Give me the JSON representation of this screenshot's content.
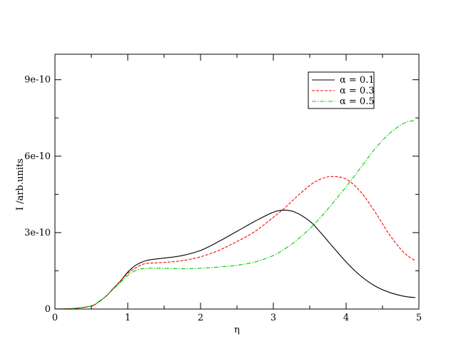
{
  "chart_data": {
    "type": "line",
    "title": "",
    "xlabel": "η",
    "ylabel": "I /arb.units",
    "xlim": [
      0,
      5
    ],
    "ylim": [
      0,
      1e-09
    ],
    "grid": false,
    "legend_position": "top-right",
    "x_ticks": [
      {
        "value": 0,
        "label": "0"
      },
      {
        "value": 1,
        "label": "1"
      },
      {
        "value": 2,
        "label": "2"
      },
      {
        "value": 3,
        "label": "3"
      },
      {
        "value": 4,
        "label": "4"
      },
      {
        "value": 5,
        "label": "5"
      }
    ],
    "y_ticks": [
      {
        "value": 0,
        "label": "0"
      },
      {
        "value": 3e-10,
        "label": "3e-10"
      },
      {
        "value": 6e-10,
        "label": "6e-10"
      },
      {
        "value": 9e-10,
        "label": "9e-10"
      }
    ],
    "x_minor_step": 0.5,
    "y_minor_step": 1.5e-10,
    "x": [
      0,
      0.25,
      0.5,
      0.6,
      0.7,
      0.8,
      0.9,
      1.0,
      1.1,
      1.2,
      1.3,
      1.5,
      1.75,
      2.0,
      2.25,
      2.5,
      2.75,
      3.0,
      3.15,
      3.3,
      3.5,
      3.65,
      3.8,
      4.0,
      4.2,
      4.4,
      4.6,
      4.8,
      4.95
    ],
    "series": [
      {
        "name": "α = 0.1",
        "color": "#000000",
        "dash": "solid",
        "values": [
          0,
          2e-12,
          1.2e-11,
          2.8e-11,
          5e-11,
          8e-11,
          1.1e-10,
          1.45e-10,
          1.7e-10,
          1.85e-10,
          1.93e-10,
          2e-10,
          2.1e-10,
          2.3e-10,
          2.65e-10,
          3.05e-10,
          3.45e-10,
          3.8e-10,
          3.88e-10,
          3.8e-10,
          3.45e-10,
          3e-10,
          2.5e-10,
          1.85e-10,
          1.3e-10,
          9e-11,
          6.5e-11,
          5e-11,
          4.5e-11
        ]
      },
      {
        "name": "α = 0.3",
        "color": "#ff0000",
        "dash": "dashed",
        "values": [
          0,
          2e-12,
          1.2e-11,
          2.8e-11,
          5e-11,
          8e-11,
          1.1e-10,
          1.4e-10,
          1.6e-10,
          1.75e-10,
          1.8e-10,
          1.83e-10,
          1.9e-10,
          2.05e-10,
          2.3e-10,
          2.65e-10,
          3.05e-10,
          3.6e-10,
          3.95e-10,
          4.35e-10,
          4.85e-10,
          5.1e-10,
          5.2e-10,
          5.1e-10,
          4.6e-10,
          3.8e-10,
          2.9e-10,
          2.2e-10,
          1.9e-10
        ]
      },
      {
        "name": "α = 0.5",
        "color": "#00cc00",
        "dash": "dashdot",
        "values": [
          0,
          2e-12,
          1.2e-11,
          2.8e-11,
          5e-11,
          7.8e-11,
          1.05e-10,
          1.32e-10,
          1.5e-10,
          1.58e-10,
          1.6e-10,
          1.6e-10,
          1.58e-10,
          1.6e-10,
          1.65e-10,
          1.72e-10,
          1.85e-10,
          2.1e-10,
          2.35e-10,
          2.65e-10,
          3.15e-10,
          3.6e-10,
          4.1e-10,
          4.8e-10,
          5.55e-10,
          6.3e-10,
          6.9e-10,
          7.3e-10,
          7.4e-10
        ]
      }
    ]
  }
}
